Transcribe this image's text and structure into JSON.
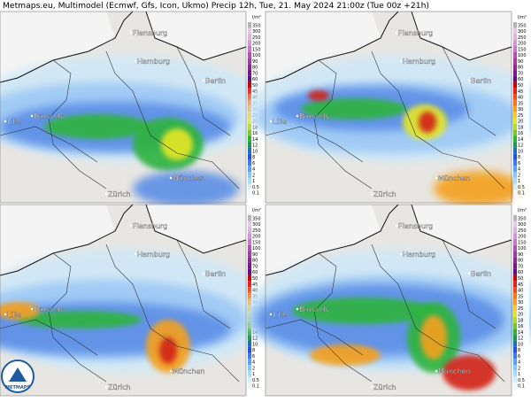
{
  "header": {
    "title": "Metmaps.eu, Multimodel (Ecmwf, Gfs, Icon, Ukmo) Precip 12h, Tue, 21. May 2024 21:00z (Tue 00z +21h)"
  },
  "panels": [
    {
      "cities": [
        "Flensburg",
        "Hamburg",
        "Berlin",
        "Brussels",
        "Lille",
        "München",
        "Zürich"
      ]
    },
    {
      "cities": [
        "Flensburg",
        "Hamburg",
        "Berlin",
        "Brussels",
        "Lille",
        "München",
        "Zürich"
      ]
    },
    {
      "cities": [
        "Flensburg",
        "Hamburg",
        "Berlin",
        "Brussels",
        "Lille",
        "München",
        "Zürich"
      ]
    },
    {
      "cities": [
        "Flensburg",
        "Hamburg",
        "Berlin",
        "Brussels",
        "Lille",
        "München",
        "Zürich"
      ]
    }
  ],
  "legend": {
    "unit": "l/m²",
    "levels": [
      "350",
      "300",
      "250",
      "200",
      "150",
      "100",
      "90",
      "80",
      "70",
      "60",
      "50",
      "45",
      "40",
      "35",
      "30",
      "25",
      "20",
      "18",
      "16",
      "14",
      "12",
      "10",
      "8",
      "6",
      "4",
      "2",
      "1",
      "0.5",
      "0.1"
    ],
    "colors": [
      "#b4b4b4",
      "#e6c8e6",
      "#dcb4dc",
      "#d296d2",
      "#c878c8",
      "#b450b4",
      "#a03ca0",
      "#8c2896",
      "#78148c",
      "#640a82",
      "#c80000",
      "#e61e1e",
      "#f04b14",
      "#f57814",
      "#faa01e",
      "#fac828",
      "#e6e628",
      "#b4dc28",
      "#78c828",
      "#32b432",
      "#1e9650",
      "#1e6ec8",
      "#2850dc",
      "#3c78f0",
      "#5aa0f5",
      "#82c8fa",
      "#aadcfa",
      "#d2eefa",
      "#f0f8fc"
    ]
  },
  "logo": "METMAPS"
}
